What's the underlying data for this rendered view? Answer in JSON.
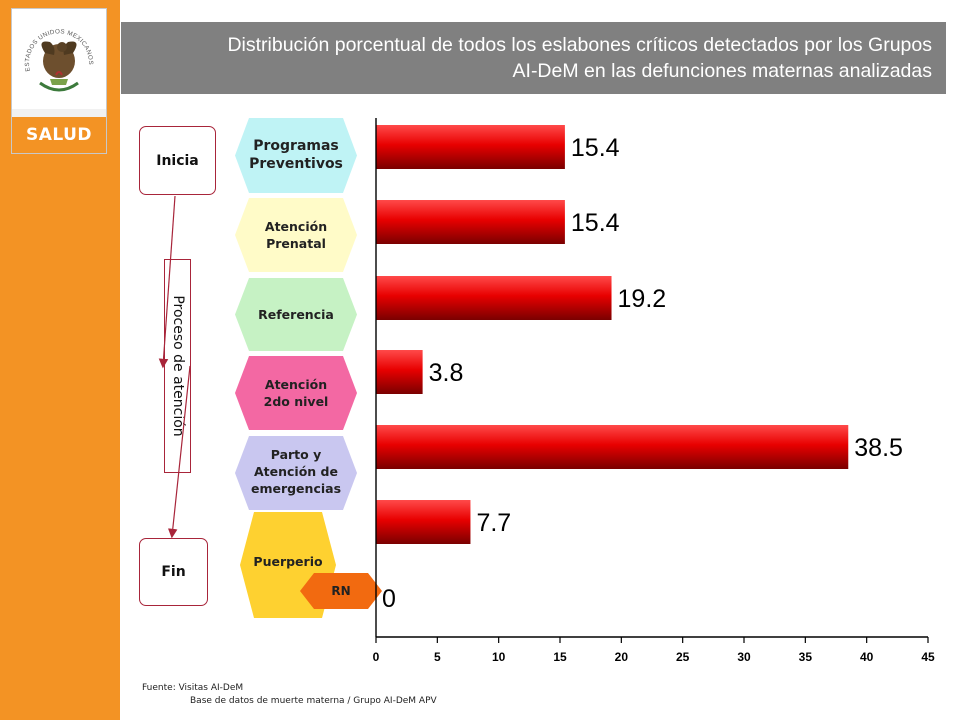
{
  "title": "Distribución porcentual de todos los eslabones críticos detectados por los Grupos AI-DeM en las defunciones maternas analizadas",
  "title_lines": [
    "Distribución porcentual de todos los eslabones críticos detectados por los Grupos",
    "AI-DeM en las defunciones maternas analizadas"
  ],
  "logo": {
    "emblem_text": "ESTADOS UNIDOS MEXICANOS",
    "label": "SALUD",
    "icon": "mexican-eagle-emblem"
  },
  "flow": {
    "start": "Inicia",
    "end": "Fin",
    "process": "Proceso de atención"
  },
  "stages": [
    {
      "lines": [
        "Programas",
        "Preventivos"
      ],
      "color": "#bff3f5"
    },
    {
      "lines": [
        "Atención",
        "Prenatal"
      ],
      "color": "#fffbc8"
    },
    {
      "lines": [
        "Referencia"
      ],
      "color": "#c6f2c4"
    },
    {
      "lines": [
        "Atención",
        "2do nivel"
      ],
      "color": "#f368a3"
    },
    {
      "lines": [
        "Parto y",
        "Atención de",
        "emergencias"
      ],
      "color": "#c9c7f0"
    },
    {
      "lines": [
        "Puerperio"
      ],
      "color": "#fed130"
    }
  ],
  "rn_label": "RN",
  "colors": {
    "sidebar": "#f39324",
    "title_bar": "#808080",
    "bar": "#e40000",
    "rn": "#f26a10"
  },
  "chart_data": {
    "type": "bar",
    "orientation": "horizontal",
    "categories": [
      "Programas Preventivos",
      "Atención Prenatal",
      "Referencia",
      "Atención 2do nivel",
      "Parto y Atención de emergencias",
      "Puerperio",
      "RN"
    ],
    "values": [
      15.4,
      15.4,
      19.2,
      3.8,
      38.5,
      7.7,
      0
    ],
    "value_labels": [
      "15.4",
      "15.4",
      "19.2",
      "3.8",
      "38.5",
      "7.7",
      "0"
    ],
    "xlim": [
      0,
      45
    ],
    "xticks": [
      "0",
      "5",
      "10",
      "15",
      "20",
      "25",
      "30",
      "35",
      "40",
      "45"
    ],
    "grid": false
  },
  "footer": {
    "line1": "Fuente: Visitas AI-DeM",
    "line2": "Base de datos de muerte materna / Grupo AI-DeM APV"
  }
}
